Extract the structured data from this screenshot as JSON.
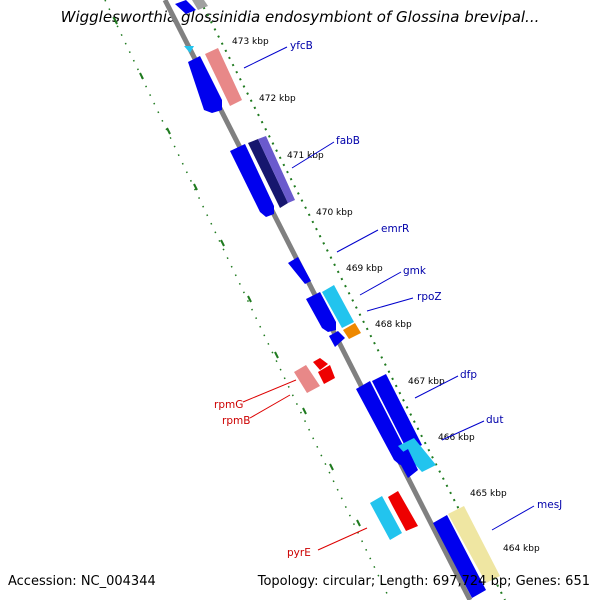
{
  "title": "Wigglesworthia glossinidia endosymbiont of Glossina brevipal...",
  "accession": "Accession: NC_004344",
  "topology": "Topology: circular; Length: 697,724 bp; Genes: 651",
  "colors": {
    "backbone": "#808080",
    "tick_track": "#1f7a1f",
    "blue": "#0000ee",
    "navy": "#16166e",
    "purple": "#6a5acd",
    "cyan": "#22c4ee",
    "pink": "#e88888",
    "red": "#ee0000",
    "orange": "#ee8800",
    "yellow": "#efe6a2",
    "label_blue": "#0000aa",
    "label_red": "#cc0000"
  },
  "kbp_ticks": [
    "473 kbp",
    "472 kbp",
    "471 kbp",
    "470 kbp",
    "469 kbp",
    "468 kbp",
    "467 kbp",
    "466 kbp",
    "465 kbp",
    "464 kbp"
  ],
  "gene_labels_right": [
    "yfcB",
    "fabB",
    "emrR",
    "gmk",
    "rpoZ",
    "dfp",
    "dut",
    "mesJ"
  ],
  "gene_labels_left": [
    "rpmG",
    "rpmB",
    "pyrE"
  ]
}
